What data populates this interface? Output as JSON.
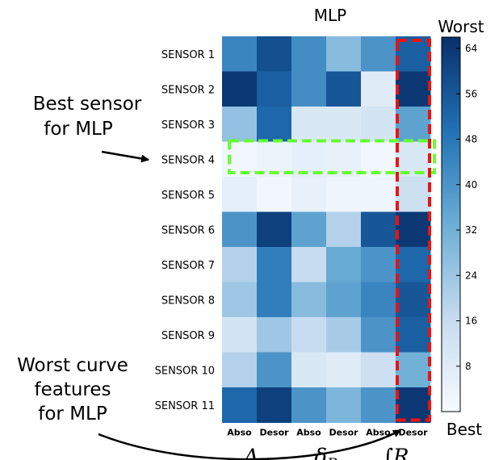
{
  "chart_data": {
    "type": "heatmap",
    "title": "MLP",
    "row_labels": [
      "SENSOR 1",
      "SENSOR 2",
      "SENSOR 3",
      "SENSOR 4",
      "SENSOR 5",
      "SENSOR 6",
      "SENSOR 7",
      "SENSOR 8",
      "SENSOR 9",
      "SENSOR 10",
      "SENSOR 11"
    ],
    "column_labels": [
      "Abso",
      "Desor",
      "Abso",
      "Desor",
      "Abso",
      "Desor"
    ],
    "column_groups": [
      {
        "label": "Δ_R",
        "columns": [
          0,
          1
        ]
      },
      {
        "label": "δ_R",
        "columns": [
          2,
          3
        ]
      },
      {
        "label": "∫R",
        "columns": [
          4,
          5
        ]
      }
    ],
    "values": [
      [
        44,
        58,
        42,
        28,
        40,
        54
      ],
      [
        64,
        54,
        42,
        56,
        8,
        64
      ],
      [
        26,
        52,
        10,
        10,
        12,
        36
      ],
      [
        2,
        4,
        6,
        5,
        2,
        10
      ],
      [
        6,
        2,
        5,
        3,
        3,
        14
      ],
      [
        40,
        62,
        36,
        20,
        56,
        64
      ],
      [
        20,
        46,
        16,
        34,
        40,
        52
      ],
      [
        24,
        46,
        28,
        36,
        44,
        56
      ],
      [
        12,
        24,
        16,
        22,
        40,
        54
      ],
      [
        20,
        40,
        10,
        8,
        14,
        32
      ],
      [
        52,
        62,
        40,
        30,
        40,
        64
      ]
    ],
    "colorbar": {
      "min": 0,
      "max": 66,
      "ticks": [
        8,
        16,
        24,
        32,
        40,
        48,
        56,
        64
      ],
      "top_label": "Worst",
      "bottom_label": "Best"
    },
    "colors": {
      "low": "#f7fbff",
      "mid": "#6baed6",
      "high": "#08306b",
      "highlight_green": "#66ff33",
      "highlight_red": "#ee1111"
    },
    "highlights": {
      "best_row": 3,
      "worst_column": 5
    },
    "annotations": {
      "best_line1": "Best sensor",
      "best_line2": "for MLP",
      "worst_line1": "Worst curve",
      "worst_line2": "features",
      "worst_line3": "for MLP"
    }
  }
}
